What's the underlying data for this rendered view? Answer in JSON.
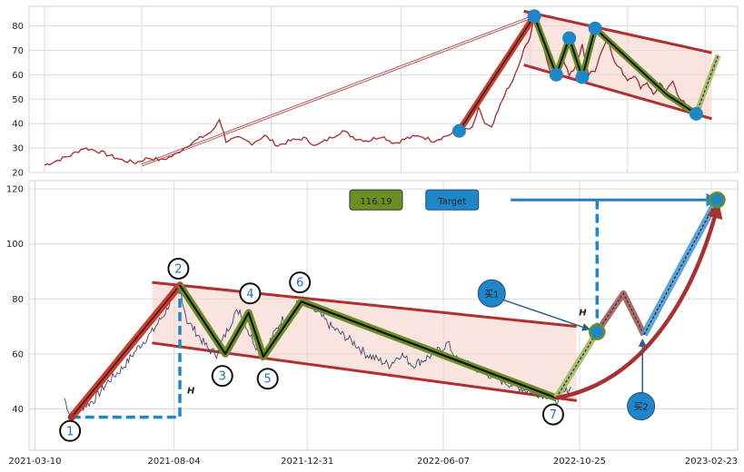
{
  "chart_data": [
    {
      "type": "line",
      "panel": "top",
      "grid": true,
      "ylim": [
        20,
        88
      ],
      "yticks": [
        20,
        30,
        40,
        50,
        60,
        70,
        80
      ],
      "xticks": [],
      "price": [
        [
          0,
          23
        ],
        [
          10,
          25
        ],
        [
          20,
          27
        ],
        [
          30,
          30
        ],
        [
          40,
          29
        ],
        [
          50,
          27
        ],
        [
          60,
          25
        ],
        [
          70,
          24
        ],
        [
          80,
          26
        ],
        [
          90,
          25
        ],
        [
          100,
          27
        ],
        [
          110,
          31
        ],
        [
          120,
          34
        ],
        [
          130,
          37
        ],
        [
          135,
          42
        ],
        [
          140,
          33
        ],
        [
          150,
          34
        ],
        [
          160,
          32
        ],
        [
          170,
          35
        ],
        [
          180,
          31
        ],
        [
          190,
          33
        ],
        [
          200,
          34
        ],
        [
          210,
          31
        ],
        [
          220,
          34
        ],
        [
          230,
          37
        ],
        [
          240,
          34
        ],
        [
          250,
          33
        ],
        [
          260,
          35
        ],
        [
          270,
          32
        ],
        [
          280,
          34
        ],
        [
          290,
          35
        ],
        [
          300,
          33
        ],
        [
          310,
          35
        ],
        [
          320,
          37
        ],
        [
          330,
          38
        ],
        [
          335,
          46
        ],
        [
          340,
          40
        ],
        [
          345,
          38
        ],
        [
          350,
          45
        ],
        [
          355,
          52
        ],
        [
          360,
          56
        ],
        [
          365,
          62
        ],
        [
          370,
          70
        ],
        [
          375,
          76
        ],
        [
          378,
          84
        ],
        [
          382,
          80
        ],
        [
          386,
          70
        ],
        [
          390,
          62
        ],
        [
          395,
          58
        ],
        [
          400,
          67
        ],
        [
          405,
          60
        ],
        [
          410,
          63
        ],
        [
          415,
          72
        ],
        [
          420,
          60
        ],
        [
          425,
          62
        ],
        [
          430,
          70
        ],
        [
          435,
          75
        ],
        [
          440,
          65
        ],
        [
          445,
          62
        ],
        [
          450,
          58
        ],
        [
          455,
          60
        ],
        [
          460,
          55
        ],
        [
          465,
          57
        ],
        [
          470,
          52
        ],
        [
          475,
          56
        ],
        [
          480,
          53
        ],
        [
          485,
          58
        ],
        [
          490,
          50
        ],
        [
          495,
          48
        ],
        [
          500,
          46
        ],
        [
          503,
          44
        ],
        [
          508,
          50
        ]
      ],
      "trend_up": [
        [
          320,
          37
        ],
        [
          378,
          84
        ]
      ],
      "zigzag": [
        [
          378,
          84
        ],
        [
          395,
          60
        ],
        [
          405,
          75
        ],
        [
          415,
          59
        ],
        [
          425,
          79
        ],
        [
          480,
          52
        ],
        [
          503,
          44
        ]
      ],
      "projection": [
        [
          503,
          44
        ],
        [
          520,
          68
        ]
      ],
      "channel_upper": [
        [
          370,
          86
        ],
        [
          515,
          69
        ]
      ],
      "channel_lower": [
        [
          370,
          64
        ],
        [
          515,
          42
        ]
      ],
      "long_line": [
        [
          75,
          23
        ],
        [
          378,
          84
        ]
      ],
      "pivots": [
        [
          320,
          37
        ],
        [
          378,
          84
        ],
        [
          395,
          60
        ],
        [
          405,
          75
        ],
        [
          415,
          59
        ],
        [
          425,
          79
        ],
        [
          503,
          44
        ]
      ]
    },
    {
      "type": "line",
      "panel": "bottom",
      "grid": true,
      "ylim": [
        25,
        123
      ],
      "yticks": [
        40,
        60,
        80,
        100,
        120
      ],
      "xtick_labels": [
        "2021-03-10",
        "2021-08-04",
        "2021-12-31",
        "2022-06-07",
        "2022-10-25",
        "2023-02-23"
      ],
      "price": [
        [
          0,
          44
        ],
        [
          4,
          38
        ],
        [
          10,
          40
        ],
        [
          20,
          43
        ],
        [
          30,
          50
        ],
        [
          40,
          55
        ],
        [
          50,
          62
        ],
        [
          60,
          68
        ],
        [
          70,
          76
        ],
        [
          75,
          83
        ],
        [
          79,
          84
        ],
        [
          84,
          72
        ],
        [
          90,
          68
        ],
        [
          98,
          62
        ],
        [
          104,
          60
        ],
        [
          110,
          67
        ],
        [
          116,
          74
        ],
        [
          120,
          76
        ],
        [
          126,
          68
        ],
        [
          132,
          62
        ],
        [
          136,
          58
        ],
        [
          140,
          64
        ],
        [
          148,
          72
        ],
        [
          156,
          76
        ],
        [
          162,
          80
        ],
        [
          168,
          77
        ],
        [
          175,
          74
        ],
        [
          182,
          70
        ],
        [
          190,
          67
        ],
        [
          198,
          64
        ],
        [
          206,
          60
        ],
        [
          214,
          58
        ],
        [
          222,
          56
        ],
        [
          230,
          60
        ],
        [
          238,
          56
        ],
        [
          246,
          58
        ],
        [
          252,
          60
        ],
        [
          258,
          62
        ],
        [
          262,
          64
        ],
        [
          268,
          58
        ],
        [
          276,
          56
        ],
        [
          284,
          54
        ],
        [
          292,
          52
        ],
        [
          300,
          50
        ],
        [
          310,
          48
        ],
        [
          320,
          46
        ],
        [
          330,
          45
        ],
        [
          336,
          43
        ],
        [
          342,
          46
        ],
        [
          346,
          48
        ]
      ],
      "trend_up": [
        [
          5,
          37
        ],
        [
          79,
          85
        ]
      ],
      "zigzag": [
        [
          79,
          85
        ],
        [
          110,
          60
        ],
        [
          126,
          75
        ],
        [
          136,
          59
        ],
        [
          162,
          79
        ],
        [
          336,
          44
        ]
      ],
      "projection": [
        [
          336,
          44
        ],
        [
          364,
          68
        ]
      ],
      "future_red": [
        [
          364,
          68
        ],
        [
          382,
          82
        ],
        [
          396,
          67
        ]
      ],
      "future_blue": [
        [
          396,
          67
        ],
        [
          446,
          116
        ]
      ],
      "curve": [
        [
          336,
          44
        ],
        [
          400,
          50
        ],
        [
          432,
          85
        ],
        [
          446,
          113
        ]
      ],
      "channel_upper": [
        [
          60,
          86
        ],
        [
          350,
          70
        ]
      ],
      "channel_lower": [
        [
          60,
          64
        ],
        [
          350,
          43
        ]
      ],
      "target_arrow": [
        [
          305,
          116
        ],
        [
          446,
          116
        ]
      ],
      "h_left": {
        "x": 79,
        "y_from": 37,
        "y_to": 85,
        "baseline_from_x": 5
      },
      "h_right": {
        "x": 364,
        "y_from": 68,
        "y_to": 116
      },
      "target_point": [
        446,
        116
      ],
      "mid_point": [
        364,
        68
      ],
      "start_point": [
        5,
        37
      ],
      "labels": [
        {
          "text": "1",
          "x": 4,
          "y": 32
        },
        {
          "text": "2",
          "x": 78,
          "y": 91
        },
        {
          "text": "3",
          "x": 108,
          "y": 52
        },
        {
          "text": "4",
          "x": 127,
          "y": 82
        },
        {
          "text": "5",
          "x": 139,
          "y": 51
        },
        {
          "text": "6",
          "x": 161,
          "y": 86
        },
        {
          "text": "7",
          "x": 334,
          "y": 38
        }
      ],
      "h_text": "H",
      "value_badge": "116.19",
      "target_label": "Target",
      "buy1_label": "买1",
      "buy2_label": "买2",
      "buy1_pos": [
        292,
        82
      ],
      "buy2_pos": [
        394,
        41
      ]
    }
  ],
  "colors": {
    "price_top": "#a52a2a",
    "price_bottom": "#3d4a6b",
    "trend": "#d13a2a",
    "zigzag": "#6b8e23",
    "channel": "#b03030",
    "channel_fill": "#f8d5d0",
    "projection": "#a8c070",
    "future_red": "#a05050",
    "future_blue": "#4a9ad8",
    "curve": "#a83030",
    "accent": "#1f87c9",
    "badge": "#6b8e23"
  }
}
